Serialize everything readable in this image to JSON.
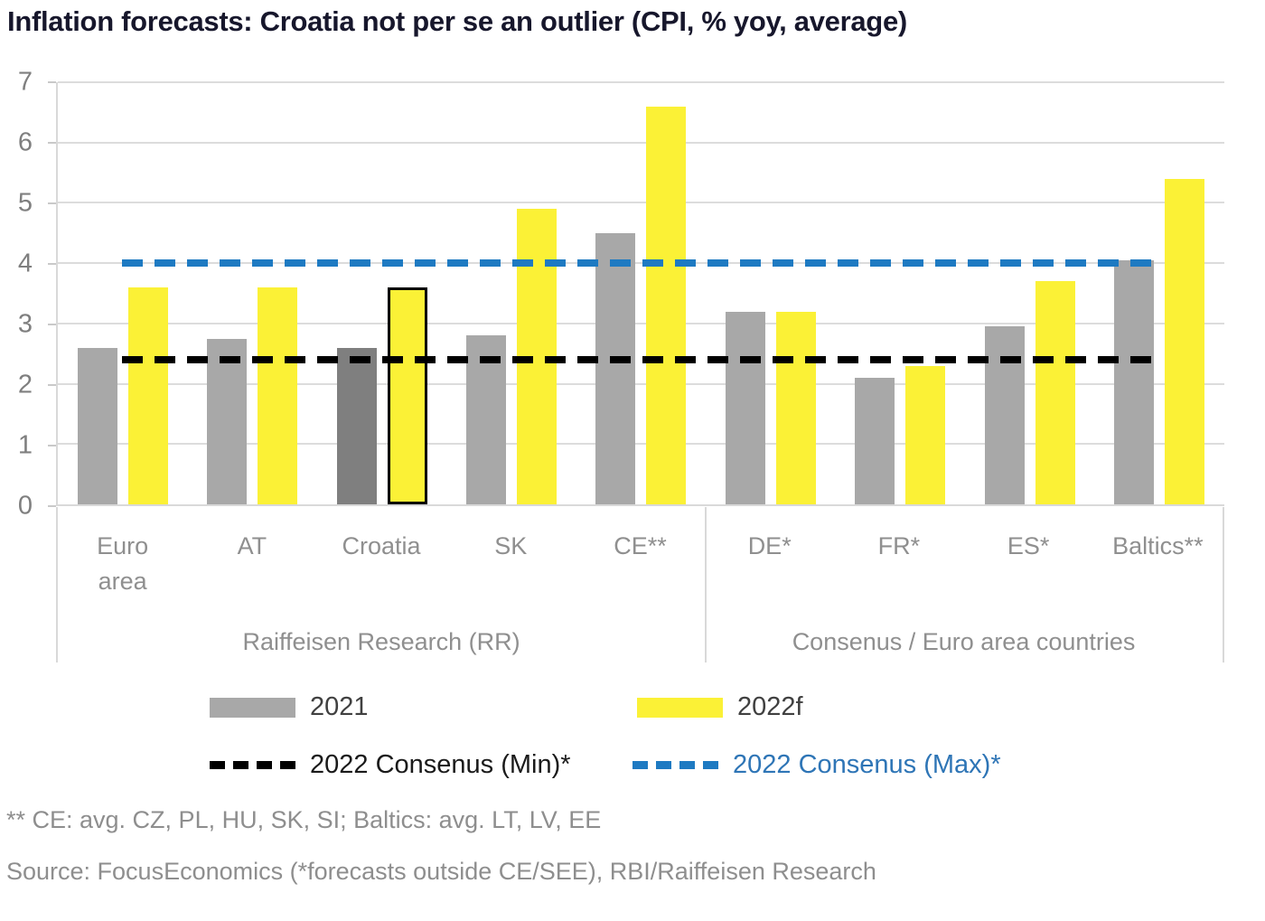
{
  "title": "Inflation forecasts: Croatia not per se an outlier (CPI, % yoy, average)",
  "chart_data": {
    "type": "bar",
    "categories": [
      "Euro area",
      "AT",
      "Croatia",
      "SK",
      "CE**",
      "DE*",
      "FR*",
      "ES*",
      "Baltics**"
    ],
    "category_labels": [
      "Euro\narea",
      "AT",
      "Croatia",
      "SK",
      "CE**",
      "DE*",
      "FR*",
      "ES*",
      "Baltics**"
    ],
    "groups": [
      {
        "label": "Raiffeisen Research (RR)",
        "span": 5
      },
      {
        "label": "Consenus / Euro area countries",
        "span": 4
      }
    ],
    "series": [
      {
        "name": "2021",
        "color": "#a8a8a8",
        "values": [
          2.6,
          2.75,
          2.6,
          2.8,
          4.5,
          3.2,
          2.1,
          2.95,
          4.05
        ]
      },
      {
        "name": "2022f",
        "color": "#fbf136",
        "values": [
          3.6,
          3.6,
          3.6,
          4.9,
          6.6,
          3.2,
          2.3,
          3.7,
          5.4
        ]
      }
    ],
    "highlight": {
      "category": "Croatia",
      "series_2021_color": "#7f7f7f",
      "series_2022f_outline_color": "#000000"
    },
    "hlines": [
      {
        "name": "2022 Consenus (Min)*",
        "value": 2.4,
        "color": "#000000",
        "label_color": "#1a1a1a",
        "style": "dashed"
      },
      {
        "name": "2022 Consenus (Max)*",
        "value": 4.0,
        "color": "#1e7ac2",
        "label_color": "#2e75b6",
        "style": "dashed"
      }
    ],
    "xlabel": "",
    "ylabel": "",
    "ylim": [
      0,
      7
    ],
    "yticks": [
      0,
      1,
      2,
      3,
      4,
      5,
      6,
      7
    ],
    "grid": true,
    "legend_position": "bottom"
  },
  "legend": {
    "series_label_color": "#404040"
  },
  "footnotes": [
    "** CE: avg. CZ, PL, HU, SK, SI; Baltics: avg. LT, LV, EE",
    "Source: FocusEconomics (*forecasts outside CE/SEE), RBI/Raiffeisen Research"
  ]
}
